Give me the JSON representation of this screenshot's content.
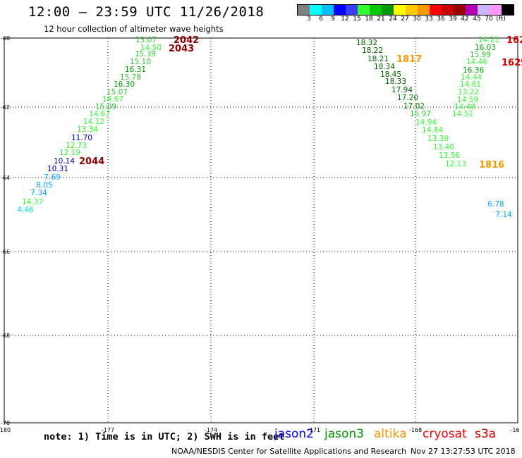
{
  "header": {
    "title": "12:00 – 23:59 UTC 11/26/2018",
    "subtitle": "12 hour collection of altimeter wave heights"
  },
  "legend": {
    "colors": [
      "#808080",
      "#00ffff",
      "#00bfff",
      "#0000ff",
      "#3c3cff",
      "#32ff32",
      "#00c800",
      "#009600",
      "#ffff00",
      "#ffc800",
      "#ff9600",
      "#ff0000",
      "#c80000",
      "#960000",
      "#b400b4",
      "#c8b4ff",
      "#ff96ff",
      "#000000"
    ],
    "labels": [
      "3",
      "6",
      "9",
      "12",
      "15",
      "18",
      "21",
      "24",
      "27",
      "30",
      "33",
      "36",
      "39",
      "42",
      "45",
      "70",
      "(ft)"
    ]
  },
  "axes": {
    "x_ticks": [
      "-180",
      "-177",
      "-174",
      "-171",
      "-168",
      "-16"
    ],
    "y_ticks": [
      "-60",
      "-62",
      "-64",
      "-66",
      "-68",
      "-70"
    ]
  },
  "observations": [
    {
      "text": "15.07",
      "color": "#32c832"
    },
    {
      "text": "14.50",
      "color": "#32ff32"
    },
    {
      "text": "15.39",
      "color": "#32c832"
    },
    {
      "text": "15.10",
      "color": "#32c832"
    },
    {
      "text": "16.31",
      "color": "#00a000"
    },
    {
      "text": "15.78",
      "color": "#32c832"
    },
    {
      "text": "16.30",
      "color": "#00a000"
    },
    {
      "text": "15.07",
      "color": "#32c832"
    },
    {
      "text": "14.67",
      "color": "#32ff32"
    },
    {
      "text": "15.09",
      "color": "#32c832"
    },
    {
      "text": "14.67",
      "color": "#32ff32"
    },
    {
      "text": "14.12",
      "color": "#32ff32"
    },
    {
      "text": "13.34",
      "color": "#32ff32"
    },
    {
      "text": "11.70",
      "color": "#0000cc"
    },
    {
      "text": "12.73",
      "color": "#32ff32"
    },
    {
      "text": "12.19",
      "color": "#32ff32"
    },
    {
      "text": "10.14",
      "color": "#0000aa"
    },
    {
      "text": "10.31",
      "color": "#0000aa"
    },
    {
      "text": "7.69",
      "color": "#00aaff"
    },
    {
      "text": "8.05",
      "color": "#00aaff"
    },
    {
      "text": "7.34",
      "color": "#00aaff"
    },
    {
      "text": "14.37",
      "color": "#32ff32"
    },
    {
      "text": "4.46",
      "color": "#00e0e0"
    },
    {
      "text": "18.32",
      "color": "#006400"
    },
    {
      "text": "18.22",
      "color": "#006400"
    },
    {
      "text": "18.21",
      "color": "#006400"
    },
    {
      "text": "18.34",
      "color": "#006400"
    },
    {
      "text": "18.45",
      "color": "#006400"
    },
    {
      "text": "18.33",
      "color": "#006400"
    },
    {
      "text": "17.94",
      "color": "#006400"
    },
    {
      "text": "17.20",
      "color": "#008000"
    },
    {
      "text": "17.02",
      "color": "#008000"
    },
    {
      "text": "15.97",
      "color": "#32c832"
    },
    {
      "text": "14.94",
      "color": "#32ff32"
    },
    {
      "text": "14.84",
      "color": "#32ff32"
    },
    {
      "text": "13.39",
      "color": "#32ff32"
    },
    {
      "text": "13.40",
      "color": "#32ff32"
    },
    {
      "text": "13.56",
      "color": "#32ff32"
    },
    {
      "text": "12.13",
      "color": "#32ff32"
    },
    {
      "text": "14.21",
      "color": "#32ff32"
    },
    {
      "text": "16.03",
      "color": "#00a000"
    },
    {
      "text": "15.99",
      "color": "#32c832"
    },
    {
      "text": "14.46",
      "color": "#32ff32"
    },
    {
      "text": "16.36",
      "color": "#00a000"
    },
    {
      "text": "14.44",
      "color": "#32ff32"
    },
    {
      "text": "14.61",
      "color": "#32ff32"
    },
    {
      "text": "13.22",
      "color": "#32ff32"
    },
    {
      "text": "14.59",
      "color": "#32ff32"
    },
    {
      "text": "14.48",
      "color": "#32ff32"
    },
    {
      "text": "14.51",
      "color": "#32ff32"
    },
    {
      "text": "6.78",
      "color": "#00aaff"
    },
    {
      "text": "7.14",
      "color": "#00aaff"
    }
  ],
  "time_labels": [
    {
      "text": "2042",
      "color": "#8b0000"
    },
    {
      "text": "2043",
      "color": "#8b0000"
    },
    {
      "text": "2044",
      "color": "#8b0000"
    },
    {
      "text": "1817",
      "color": "#ff9900"
    },
    {
      "text": "1816",
      "color": "#ff9900"
    },
    {
      "text": "162",
      "color": "#e00000"
    },
    {
      "text": "1629",
      "color": "#e00000"
    }
  ],
  "footer": {
    "note": "note: 1) Time is in UTC; 2) SWH is in feet",
    "satellites": [
      {
        "name": "jason2",
        "color": "#0000ff"
      },
      {
        "name": "jason3",
        "color": "#009600"
      },
      {
        "name": "altika",
        "color": "#ff9600"
      },
      {
        "name": "cryosat",
        "color": "#ff0000"
      },
      {
        "name": "s3a",
        "color": "#c80000"
      }
    ],
    "credit": "NOAA/NESDIS Center for Satellite Applications and Research",
    "timestamp": "Nov 27 13:27:53 UTC 2018"
  }
}
